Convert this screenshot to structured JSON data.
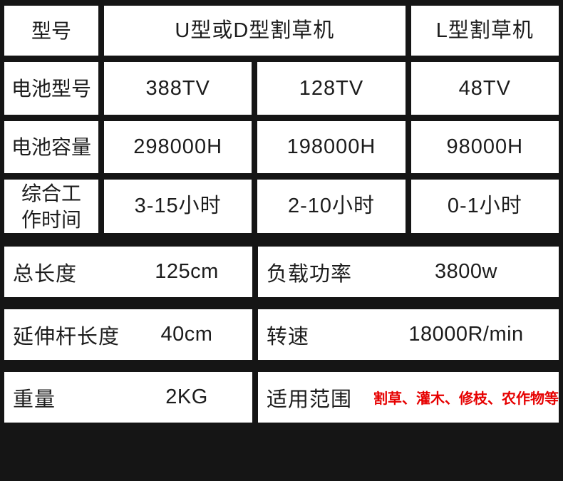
{
  "colors": {
    "page_background": "#151515",
    "cell_background": "#ffffff",
    "text": "#1c1c1c",
    "highlight_red": "#e60000"
  },
  "spec_table": {
    "header": {
      "label": "型号",
      "merged_value": "U型或D型割草机",
      "right_value": "L型割草机"
    },
    "rows": [
      {
        "label": "电池型号",
        "values": [
          "388TV",
          "128TV",
          "48TV"
        ]
      },
      {
        "label": "电池容量",
        "values": [
          "298000H",
          "198000H",
          "98000H"
        ]
      },
      {
        "label": "综合工\n作时间",
        "values": [
          "3-15小时",
          "2-10小时",
          "0-1小时"
        ]
      }
    ]
  },
  "detail_table": {
    "rows": [
      {
        "left": {
          "label": "总长度",
          "value": "125cm"
        },
        "right": {
          "label": "负载功率",
          "value": "3800w"
        }
      },
      {
        "left": {
          "label": "延伸杆长度",
          "value": "40cm"
        },
        "right": {
          "label": "转速",
          "value": "18000R/min"
        }
      },
      {
        "left": {
          "label": "重量",
          "value": "2KG"
        },
        "right": {
          "label": "适用范围",
          "value": "割草、灌木、修枝、农作物等"
        }
      }
    ]
  }
}
